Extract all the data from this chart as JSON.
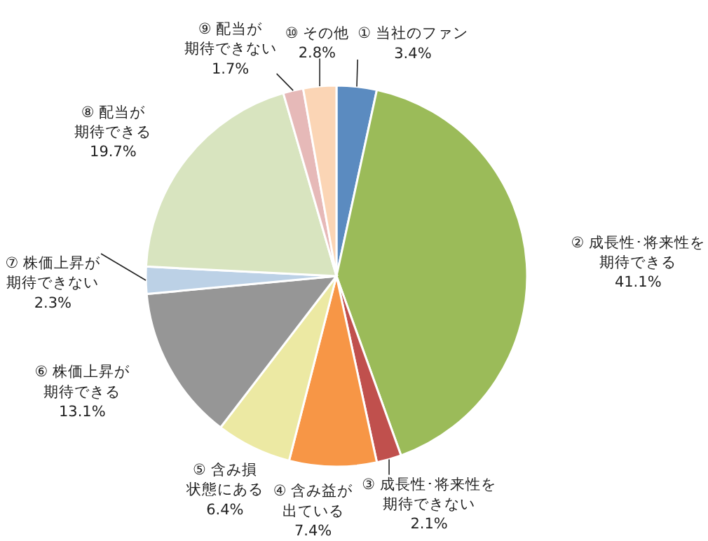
{
  "chart_data": {
    "type": "pie",
    "categories": [
      "① 当社のファン",
      "② 成長性･将来性を期待できる",
      "③ 成長性･将来性を期待できない",
      "④ 含み益が出ている",
      "⑤ 含み損状態にある",
      "⑥ 株価上昇が期待できる",
      "⑦ 株価上昇が期待できない",
      "⑧ 配当が期待できる",
      "⑨ 配当が期待できない",
      "⑩ その他"
    ],
    "values": [
      3.4,
      41.1,
      2.1,
      7.4,
      6.4,
      13.1,
      2.3,
      19.7,
      1.7,
      2.8
    ],
    "value_labels": [
      "3.4%",
      "41.1%",
      "2.1%",
      "7.4%",
      "6.4%",
      "13.1%",
      "2.3%",
      "19.7%",
      "1.7%",
      "2.8%"
    ],
    "colors": [
      "#5b8bc0",
      "#9bbb59",
      "#c0504d",
      "#f79646",
      "#ece9a3",
      "#969696",
      "#bcd1e6",
      "#d8e4bf",
      "#e6b9b8",
      "#fbd5b5"
    ]
  }
}
